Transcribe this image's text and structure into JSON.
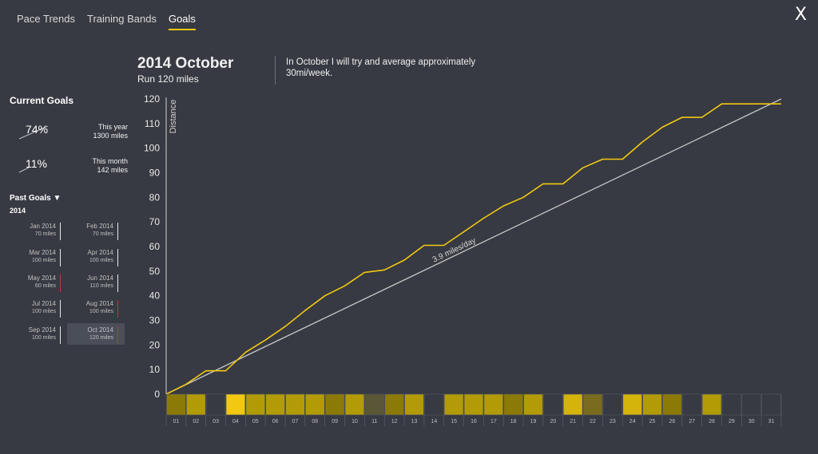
{
  "tabs": [
    {
      "label": "Pace Trends",
      "active": false
    },
    {
      "label": "Training Bands",
      "active": false
    },
    {
      "label": "Goals",
      "active": true
    }
  ],
  "close_label": "X",
  "header": {
    "title": "2014 October",
    "subtitle": "Run 120 miles",
    "note": "In October I will try and average approximately 30mi/week."
  },
  "current_goals": {
    "title": "Current Goals",
    "items": [
      {
        "percent": "74%",
        "period": "This year",
        "target": "1300 miles"
      },
      {
        "percent": "11%",
        "period": "This month",
        "target": "142 miles"
      }
    ]
  },
  "past_goals": {
    "title": "Past Goals ▼",
    "year": "2014",
    "items": [
      {
        "month": "Jan 2014",
        "target": "70 miles",
        "met": true
      },
      {
        "month": "Feb 2014",
        "target": "70 miles",
        "met": true
      },
      {
        "month": "Mar 2014",
        "target": "100 miles",
        "met": true
      },
      {
        "month": "Apr 2014",
        "target": "100 miles",
        "met": true
      },
      {
        "month": "May 2014",
        "target": "60 miles",
        "met": false
      },
      {
        "month": "Jun 2014",
        "target": "110 miles",
        "met": true
      },
      {
        "month": "Jul 2014",
        "target": "100 miles",
        "met": true
      },
      {
        "month": "Aug 2014",
        "target": "100 miles",
        "met": false
      },
      {
        "month": "Sep 2014",
        "target": "100 miles",
        "met": true
      },
      {
        "month": "Oct 2014",
        "target": "120 miles",
        "met": false,
        "selected": true
      }
    ]
  },
  "colors": {
    "accent": "#f2c811",
    "goal_line": "#c8c8c8",
    "background": "#373a42",
    "met": "#e6e6e6",
    "missed": "#b93a3a"
  },
  "chart_data": {
    "type": "line",
    "ylabel": "Distance",
    "ylim": [
      0,
      120
    ],
    "yticks": [
      0,
      10,
      20,
      30,
      40,
      50,
      60,
      70,
      80,
      90,
      100,
      110,
      120
    ],
    "x": [
      0,
      1,
      2,
      3,
      4,
      5,
      6,
      7,
      8,
      9,
      10,
      11,
      12,
      13,
      14,
      15,
      16,
      17,
      18,
      19,
      20,
      21,
      22,
      23,
      24,
      25,
      26,
      27,
      28,
      29,
      30,
      31
    ],
    "series": [
      {
        "values": [
          0,
          4,
          9.5,
          9.5,
          17,
          22,
          27.5,
          34,
          40,
          44,
          49.5,
          50.5,
          54.5,
          60.5,
          60.5,
          66,
          71.5,
          76.5,
          80,
          85.5,
          85.5,
          92,
          95.5,
          95.5,
          102.5,
          108.5,
          112.5,
          112.5,
          118,
          118,
          118,
          118
        ]
      }
    ],
    "goal_line": {
      "label": "3.9 miles/day",
      "from": [
        0,
        0
      ],
      "to": [
        31,
        120
      ]
    },
    "day_labels": [
      "01",
      "02",
      "03",
      "04",
      "05",
      "06",
      "07",
      "08",
      "09",
      "10",
      "11",
      "12",
      "13",
      "14",
      "15",
      "16",
      "17",
      "18",
      "19",
      "20",
      "21",
      "22",
      "23",
      "24",
      "25",
      "26",
      "27",
      "28",
      "29",
      "30",
      "31"
    ],
    "day_colors": [
      "#8c7a07",
      "#b39b07",
      "",
      "#f2c811",
      "#b39b07",
      "#b39b07",
      "#b39b07",
      "#b39b07",
      "#8c7a07",
      "#b39b07",
      "#5a5636",
      "#8c7a07",
      "#b39b07",
      "",
      "#b39b07",
      "#b39b07",
      "#b39b07",
      "#8c7a07",
      "#b39b07",
      "",
      "#d4b40b",
      "#7a6c1e",
      "",
      "#d4b40b",
      "#b39b07",
      "#8c7a07",
      "",
      "#b39b07",
      "",
      "",
      ""
    ]
  }
}
